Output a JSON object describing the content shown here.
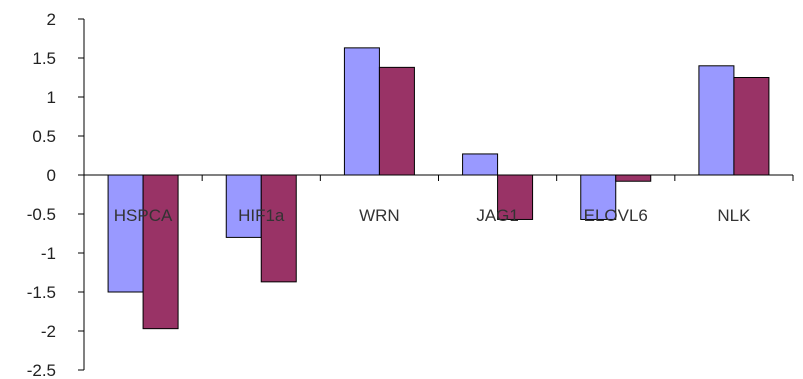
{
  "chart_data": {
    "type": "bar",
    "title": "",
    "xlabel": "",
    "ylabel": "",
    "categories": [
      "HSPCA",
      "HIF1a",
      "WRN",
      "JAG1",
      "ELOVL6",
      "NLK"
    ],
    "series": [
      {
        "values": [
          -1.5,
          -0.8,
          1.63,
          0.27,
          -0.57,
          1.4
        ]
      },
      {
        "values": [
          -1.97,
          -1.37,
          1.38,
          -0.57,
          -0.08,
          1.25
        ]
      }
    ],
    "ylim": [
      -2.5,
      2
    ],
    "yticks": [
      "2",
      "1.5",
      "1",
      "0.5",
      "0",
      "-0.5",
      "-1",
      "-1.5",
      "-2",
      "-2.5"
    ],
    "grid": false,
    "legend": "none"
  },
  "colors": {
    "series_fill": [
      "#9999ff",
      "#993366"
    ],
    "bar_stroke": "#000000",
    "axis": "#000000"
  }
}
